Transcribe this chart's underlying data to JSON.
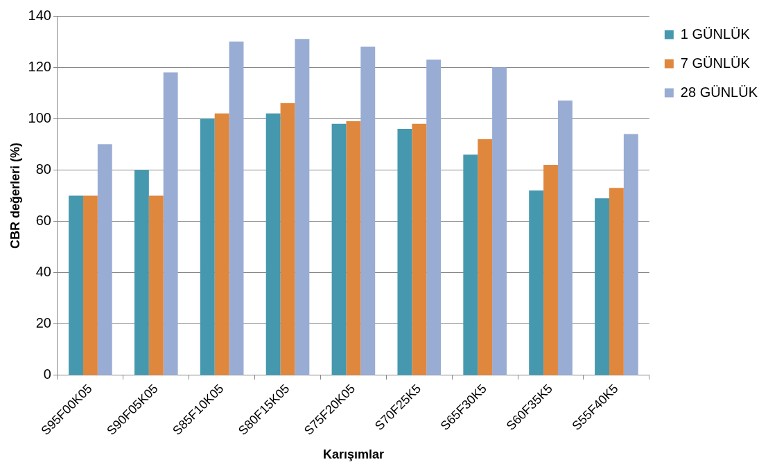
{
  "chart_data": {
    "type": "bar",
    "xlabel": "Karışımlar",
    "ylabel": "CBR değerleri (%)",
    "categories": [
      "S95F00K05",
      "S90F05K05",
      "S85F10K05",
      "S80F15K05",
      "S75F20K05",
      "S70F25K5",
      "S65F30K5",
      "S60F35K5",
      "S55F40K5"
    ],
    "series": [
      {
        "name": "1 GÜNLÜK",
        "color": "#4598ae",
        "values": [
          70,
          80,
          100,
          102,
          98,
          96,
          86,
          72,
          69
        ]
      },
      {
        "name": "7 GÜNLÜK",
        "color": "#e0873e",
        "values": [
          70,
          70,
          102,
          106,
          99,
          98,
          92,
          82,
          73
        ]
      },
      {
        "name": "28 GÜNLÜK",
        "color": "#98acd4",
        "values": [
          90,
          118,
          130,
          131,
          128,
          123,
          120,
          107,
          94
        ]
      }
    ],
    "ylim": [
      0,
      140
    ],
    "yticks": [
      0,
      20,
      40,
      60,
      80,
      100,
      120,
      140
    ],
    "grid": "y",
    "legend": "top right"
  }
}
